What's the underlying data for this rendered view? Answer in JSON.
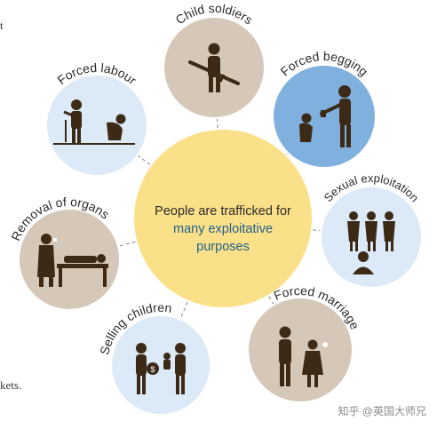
{
  "center": {
    "line1": "People are trafficked for",
    "line2": "many exploitative",
    "line3": "purposes"
  },
  "categories": [
    {
      "key": "child-soldiers",
      "label": "Child soldiers"
    },
    {
      "key": "forced-begging",
      "label": "Forced begging"
    },
    {
      "key": "sexual-exploitation",
      "label": "Sexual exploitation"
    },
    {
      "key": "forced-marriage",
      "label": "Forced marriage"
    },
    {
      "key": "selling-children",
      "label": "Selling children"
    },
    {
      "key": "removal-of-organs",
      "label": "Removal of organs"
    },
    {
      "key": "forced-labour",
      "label": "Forced labour"
    }
  ],
  "edge_text": {
    "top": "t",
    "bottom": "kets."
  },
  "watermark": "知乎 @英国大师兄",
  "colors": {
    "center_fill": "#fbe08a",
    "tan": "#d6c8b8",
    "light_blue": "#dce9f6",
    "mid_blue": "#7fb0de",
    "figure": "#3c2a17",
    "connector": "#9a9a9a"
  }
}
